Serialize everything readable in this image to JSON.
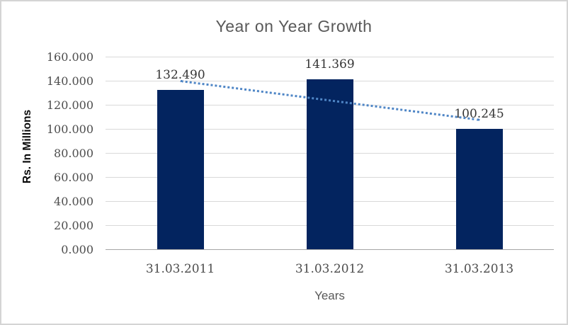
{
  "window": {
    "background": "#ffffff",
    "border_color": "#d4d4d4"
  },
  "chart_data": {
    "type": "bar",
    "title": "Year on Year Growth",
    "xlabel": "Years",
    "ylabel": "Rs. In Millions",
    "categories": [
      "31.03.2011",
      "31.03.2012",
      "31.03.2013"
    ],
    "values": [
      132.49,
      141.369,
      100.245
    ],
    "data_labels": [
      "132.490",
      "141.369",
      "100.245"
    ],
    "ylim": [
      0,
      160
    ],
    "y_ticks": [
      "160.000",
      "140.000",
      "120.000",
      "100.000",
      "80.000",
      "60.000",
      "40.000",
      "20.000",
      "0.000"
    ],
    "grid": true,
    "legend": "none",
    "trendline": {
      "type": "linear",
      "style": "dotted"
    },
    "colors": {
      "bar": "#03245f",
      "trendline": "#4f86c6",
      "gridline": "#d9d9d9",
      "axis_line": "#a6a6a6",
      "title_text": "#595959",
      "tick_text": "#4d4d4d",
      "data_label_text": "#353535",
      "x_axis_title_text": "#595959",
      "y_axis_title_text": "#0a0a0a"
    }
  }
}
